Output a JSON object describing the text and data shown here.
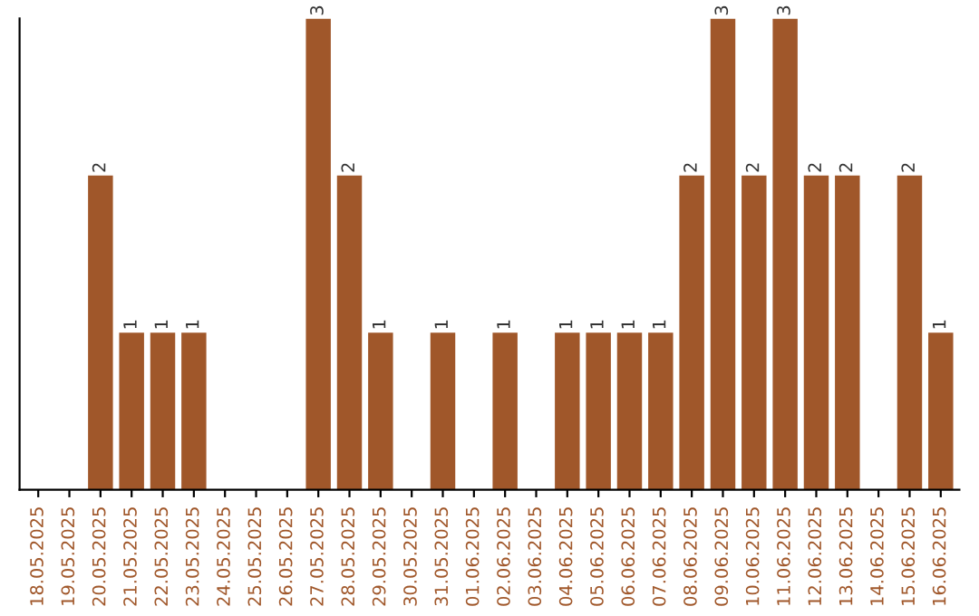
{
  "chart_data": {
    "type": "bar",
    "categories": [
      "18.05.2025",
      "19.05.2025",
      "20.05.2025",
      "21.05.2025",
      "22.05.2025",
      "23.05.2025",
      "24.05.2025",
      "25.05.2025",
      "26.05.2025",
      "27.05.2025",
      "28.05.2025",
      "29.05.2025",
      "30.05.2025",
      "31.05.2025",
      "01.06.2025",
      "02.06.2025",
      "03.06.2025",
      "04.06.2025",
      "05.06.2025",
      "06.06.2025",
      "07.06.2025",
      "08.06.2025",
      "09.06.2025",
      "10.06.2025",
      "11.06.2025",
      "12.06.2025",
      "13.06.2025",
      "14.06.2025",
      "15.06.2025",
      "16.06.2025"
    ],
    "values": [
      0,
      0,
      2,
      1,
      1,
      1,
      0,
      0,
      0,
      3,
      2,
      1,
      0,
      1,
      0,
      1,
      0,
      1,
      1,
      1,
      1,
      2,
      3,
      2,
      3,
      2,
      2,
      0,
      2,
      1
    ],
    "value_labels": [
      null,
      null,
      "2",
      "1",
      "1",
      "1",
      null,
      null,
      null,
      "3",
      "2",
      "1",
      null,
      "1",
      null,
      "1",
      null,
      "1",
      "1",
      "1",
      "1",
      "2",
      "3",
      "2",
      "3",
      "2",
      "2",
      null,
      "2",
      "1"
    ],
    "color": "#a0572a",
    "ylim": [
      0,
      3
    ],
    "tick_labels": "x",
    "grid": false,
    "legend": false
  }
}
